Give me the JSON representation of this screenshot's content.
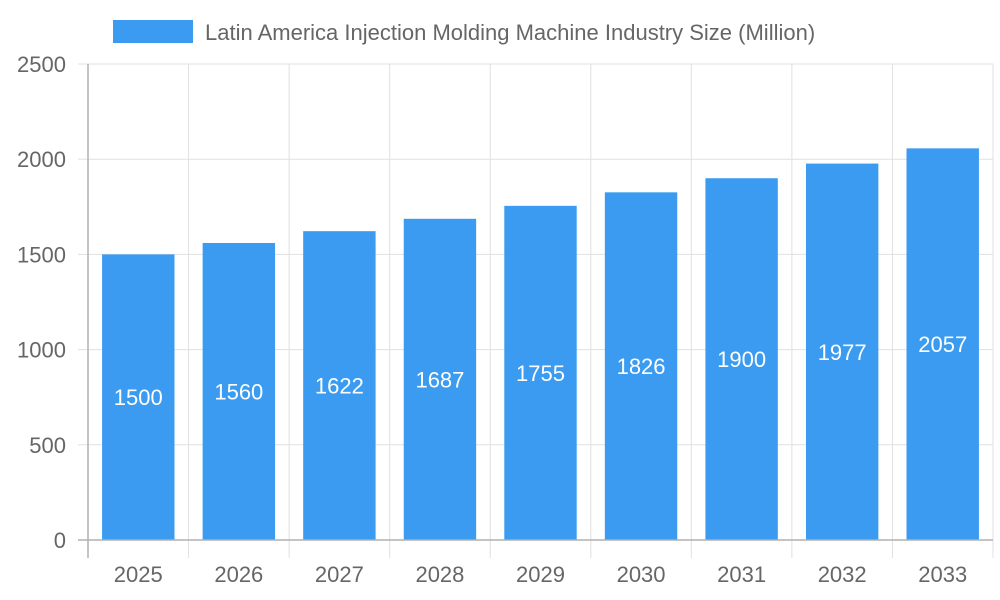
{
  "chart_data": {
    "type": "bar",
    "title": "",
    "xlabel": "",
    "ylabel": "",
    "categories": [
      "2025",
      "2026",
      "2027",
      "2028",
      "2029",
      "2030",
      "2031",
      "2032",
      "2033"
    ],
    "series": [
      {
        "name": "Latin America Injection Molding Machine Industry Size (Million)",
        "values": [
          1500,
          1560,
          1622,
          1687,
          1755,
          1826,
          1900,
          1977,
          2057
        ],
        "color": "#3a9bf0"
      }
    ],
    "ylim": [
      0,
      2500
    ],
    "yticks": [
      0,
      500,
      1000,
      1500,
      2000,
      2500
    ],
    "grid": true,
    "legend": "top-center",
    "data_labels": true,
    "colors": {
      "grid": "#e0e0e0",
      "axis": "#b0b0b0",
      "text": "#666666",
      "data_label": "#ffffff"
    }
  }
}
